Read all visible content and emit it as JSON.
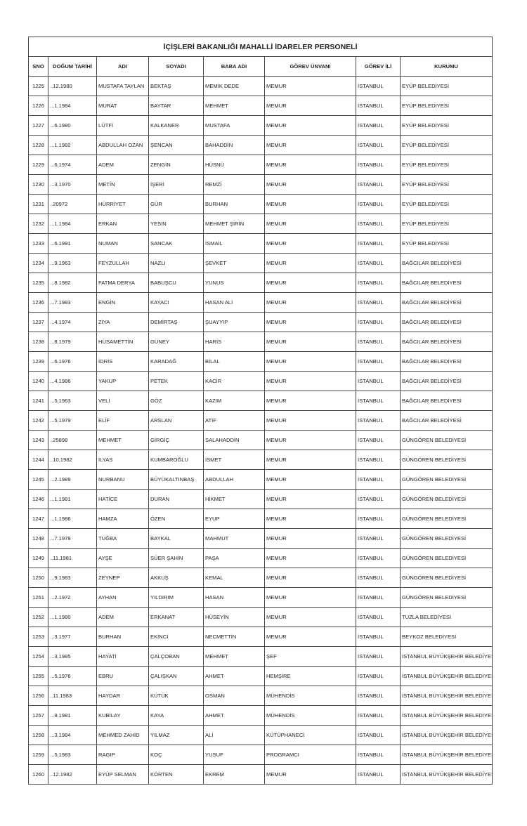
{
  "title": "İÇİŞLERİ BAKANLIĞI MAHALLİ İDARELER PERSONELİ",
  "columns": [
    "SNO",
    "DOĞUM TARİHİ",
    "ADI",
    "SOYADI",
    "BABA ADI",
    "GÖREV ÜNVANI",
    "GÖREV İLİ",
    "KURUMU"
  ],
  "rows": [
    [
      "1225",
      "..12.1980",
      "MUSTAFA TAYLAN",
      "BEKTAŞ",
      "MEMİK DEDE",
      "MEMUR",
      "İSTANBUL",
      "EYÜP BELEDİYESİ"
    ],
    [
      "1226",
      "...1.1984",
      "MURAT",
      "BAYTAR",
      "MEHMET",
      "MEMUR",
      "İSTANBUL",
      "EYÜP BELEDİYESİ"
    ],
    [
      "1227",
      "...6.1980",
      "LÜTFİ",
      "KALKANER",
      "MUSTAFA",
      "MEMUR",
      "İSTANBUL",
      "EYÜP BELEDİYESİ"
    ],
    [
      "1228",
      "...1.1982",
      "ABDULLAH OZAN",
      "ŞENCAN",
      "BAHADDİN",
      "MEMUR",
      "İSTANBUL",
      "EYÜP BELEDİYESİ"
    ],
    [
      "1229",
      "...6.1974",
      "ADEM",
      "ZENGİN",
      "HÜSNÜ",
      "MEMUR",
      "İSTANBUL",
      "EYÜP BELEDİYESİ"
    ],
    [
      "1230",
      "...3.1970",
      "METİN",
      "İŞERİ",
      "REMZİ",
      "MEMUR",
      "İSTANBUL",
      "EYÜP BELEDİYESİ"
    ],
    [
      "1231",
      "..20972",
      "HÜRRİYET",
      "GÜR",
      "BURHAN",
      "MEMUR",
      "İSTANBUL",
      "EYÜP BELEDİYESİ"
    ],
    [
      "1232",
      "...1.1984",
      "ERKAN",
      "YESİN",
      "MEHMET ŞİRİN",
      "MEMUR",
      "İSTANBUL",
      "EYÜP BELEDİYESİ"
    ],
    [
      "1233",
      "...6.1991",
      "NUMAN",
      "SANCAK",
      "İSMAİL",
      "MEMUR",
      "İSTANBUL",
      "EYÜP BELEDİYESİ"
    ],
    [
      "1234",
      "...9.1963",
      "FEYZULLAH",
      "NAZLI",
      "ŞEVKET",
      "MEMUR",
      "İSTANBUL",
      "BAĞCILAR BELEDİYESİ"
    ],
    [
      "1235",
      "...8.1982",
      "FATMA DERYA",
      "BABUŞCU",
      "YUNUS",
      "MEMUR",
      "İSTANBUL",
      "BAĞCILAR BELEDİYESİ"
    ],
    [
      "1236",
      "...7.1983",
      "ENGİN",
      "KAYACI",
      "HASAN ALİ",
      "MEMUR",
      "İSTANBUL",
      "BAĞCILAR BELEDİYESİ"
    ],
    [
      "1237",
      "...4.1974",
      "ZİYA",
      "DEMİRTAŞ",
      "ŞUAYYIP",
      "MEMUR",
      "İSTANBUL",
      "BAĞCILAR BELEDİYESİ"
    ],
    [
      "1238",
      "...8.1979",
      "HÜSAMETTİN",
      "GÜNEY",
      "HARİS",
      "MEMUR",
      "İSTANBUL",
      "BAĞCILAR BELEDİYESİ"
    ],
    [
      "1239",
      "...6.1976",
      "İDRİS",
      "KARADAĞ",
      "BİLAL",
      "MEMUR",
      "İSTANBUL",
      "BAĞCILAR BELEDİYESİ"
    ],
    [
      "1240",
      "...4.1986",
      "YAKUP",
      "PETEK",
      "KACİR",
      "MEMUR",
      "İSTANBUL",
      "BAĞCILAR BELEDİYESİ"
    ],
    [
      "1241",
      "...5.1963",
      "VELİ",
      "GÖZ",
      "KAZIM",
      "MEMUR",
      "İSTANBUL",
      "BAĞCILAR BELEDİYESİ"
    ],
    [
      "1242",
      "...5.1979",
      "ELİF",
      "ARSLAN",
      "ATIF",
      "MEMUR",
      "İSTANBUL",
      "BAĞCILAR BELEDİYESİ"
    ],
    [
      "1243",
      "..25898",
      "MEHMET",
      "GİRGİÇ",
      "SALAHADDİN",
      "MEMUR",
      "İSTANBUL",
      "GÜNGÖREN BELEDİYESİ"
    ],
    [
      "1244",
      "..10.1982",
      "İLYAS",
      "KUMBAROĞLU",
      "İSMET",
      "MEMUR",
      "İSTANBUL",
      "GÜNGÖREN BELEDİYESİ"
    ],
    [
      "1245",
      "...2.1989",
      "NURBANU",
      "BÜYÜKALTINBAŞ",
      "ABDULLAH",
      "MEMUR",
      "İSTANBUL",
      "GÜNGÖREN BELEDİYESİ"
    ],
    [
      "1246",
      "...1.1981",
      "HATİCE",
      "DURAN",
      "HİKMET",
      "MEMUR",
      "İSTANBUL",
      "GÜNGÖREN BELEDİYESİ"
    ],
    [
      "1247",
      "...1.1986",
      "HAMZA",
      "ÖZEN",
      "EYUP",
      "MEMUR",
      "İSTANBUL",
      "GÜNGÖREN BELEDİYESİ"
    ],
    [
      "1248",
      "...7.1978",
      "TUĞBA",
      "BAYKAL",
      "MAHMUT",
      "MEMUR",
      "İSTANBUL",
      "GÜNGÖREN BELEDİYESİ"
    ],
    [
      "1249",
      "..11.1981",
      "AYŞE",
      "SÜER ŞAHİN",
      "PAŞA",
      "MEMUR",
      "İSTANBUL",
      "GÜNGÖREN BELEDİYESİ"
    ],
    [
      "1250",
      "...9.1983",
      "ZEYNEP",
      "AKKUŞ",
      "KEMAL",
      "MEMUR",
      "İSTANBUL",
      "GÜNGÖREN BELEDİYESİ"
    ],
    [
      "1251",
      "...2.1972",
      "AYHAN",
      "YILDIRIM",
      "HASAN",
      "MEMUR",
      "İSTANBUL",
      "GÜNGÖREN BELEDİYESİ"
    ],
    [
      "1252",
      "...1.1980",
      "ADEM",
      "ERKANAT",
      "HÜSEYİN",
      "MEMUR",
      "İSTANBUL",
      "TUZLA BELEDİYESİ"
    ],
    [
      "1253",
      "...3.1977",
      "BURHAN",
      "EKİNCİ",
      "NECMETTİN",
      "MEMUR",
      "İSTANBUL",
      "BEYKOZ BELEDİYESİ"
    ],
    [
      "1254",
      "...3.1985",
      "HAYATİ",
      "ÇALÇOBAN",
      "MEHMET",
      "ŞEF",
      "İSTANBUL",
      "İSTANBUL BÜYÜKŞEHİR BELEDİYESİ"
    ],
    [
      "1255",
      "...5.1976",
      "EBRU",
      "ÇALIŞKAN",
      "AHMET",
      "HEMŞİRE",
      "İSTANBUL",
      "İSTANBUL BÜYÜKŞEHİR BELEDİYESİ"
    ],
    [
      "1256",
      "..11.1983",
      "HAYDAR",
      "KÜTÜK",
      "OSMAN",
      "MÜHENDİS",
      "İSTANBUL",
      "İSTANBUL BÜYÜKŞEHİR BELEDİYESİ"
    ],
    [
      "1257",
      "...9.1981",
      "KUBİLAY",
      "KAYA",
      "AHMET",
      "MÜHENDİS",
      "İSTANBUL",
      "İSTANBUL BÜYÜKŞEHİR BELEDİYESİ"
    ],
    [
      "1258",
      "...3.1984",
      "MEHMED ZAHİD",
      "YILMAZ",
      "ALİ",
      "KÜTÜPHANECİ",
      "İSTANBUL",
      "İSTANBUL BÜYÜKŞEHİR BELEDİYESİ"
    ],
    [
      "1259",
      "...5.1983",
      "RAGIP",
      "KOÇ",
      "YUSUF",
      "PROGRAMCI",
      "İSTANBUL",
      "İSTANBUL BÜYÜKŞEHİR BELEDİYESİ"
    ],
    [
      "1260",
      "..12.1982",
      "EYÜP SELMAN",
      "KORTEN",
      "EKREM",
      "MEMUR",
      "İSTANBUL",
      "İSTANBUL BÜYÜKŞEHİR BELEDİYESİ"
    ]
  ]
}
